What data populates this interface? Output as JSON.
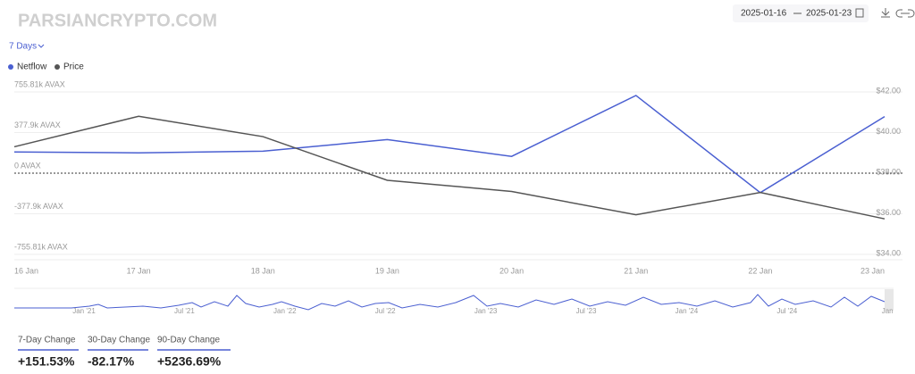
{
  "header": {
    "watermark": "PARSIANCRYPTO.COM",
    "range_start": "2025-01-16",
    "range_end": "2025-01-23",
    "period": "7 Days"
  },
  "chart_data": {
    "type": "line",
    "categories": [
      "16 Jan",
      "17 Jan",
      "18 Jan",
      "19 Jan",
      "20 Jan",
      "21 Jan",
      "22 Jan",
      "23 Jan"
    ],
    "series": [
      {
        "name": "Netflow",
        "color": "#4a5fd1",
        "values": [
          197000,
          189000,
          205000,
          312000,
          156000,
          723000,
          -181000,
          526000
        ]
      },
      {
        "name": "Price",
        "color": "#555555",
        "axis": "y2",
        "values": [
          39.3,
          40.8,
          39.8,
          37.65,
          37.1,
          35.95,
          37.05,
          35.75
        ]
      }
    ],
    "ylim": [
      -755810,
      755810
    ],
    "yticks": [
      {
        "value": -755810,
        "label": "-755.81k AVAX"
      },
      {
        "value": -377900,
        "label": "-377.9k AVAX"
      },
      {
        "value": 0,
        "label": "0 AVAX"
      },
      {
        "value": 377900,
        "label": "377.9k AVAX"
      },
      {
        "value": 755810,
        "label": "755.81k AVAX"
      }
    ],
    "y2lim": [
      34,
      42
    ],
    "y2ticks": [
      {
        "value": 34,
        "label": "$34.00"
      },
      {
        "value": 36,
        "label": "$36.00"
      },
      {
        "value": 38,
        "label": "$38.00"
      },
      {
        "value": 40,
        "label": "$40.00"
      },
      {
        "value": 42,
        "label": "$42.00"
      }
    ],
    "grid": true
  },
  "navigator": {
    "labels": [
      "Jan '21",
      "Jul '21",
      "Jan '22",
      "Jul '22",
      "Jan '23",
      "Jul '23",
      "Jan '24",
      "Jul '24",
      "Jan"
    ]
  },
  "stats": [
    {
      "label": "7-Day Change",
      "value": "+151.53%"
    },
    {
      "label": "30-Day Change",
      "value": "-82.17%"
    },
    {
      "label": "90-Day Change",
      "value": "+5236.69%"
    }
  ]
}
